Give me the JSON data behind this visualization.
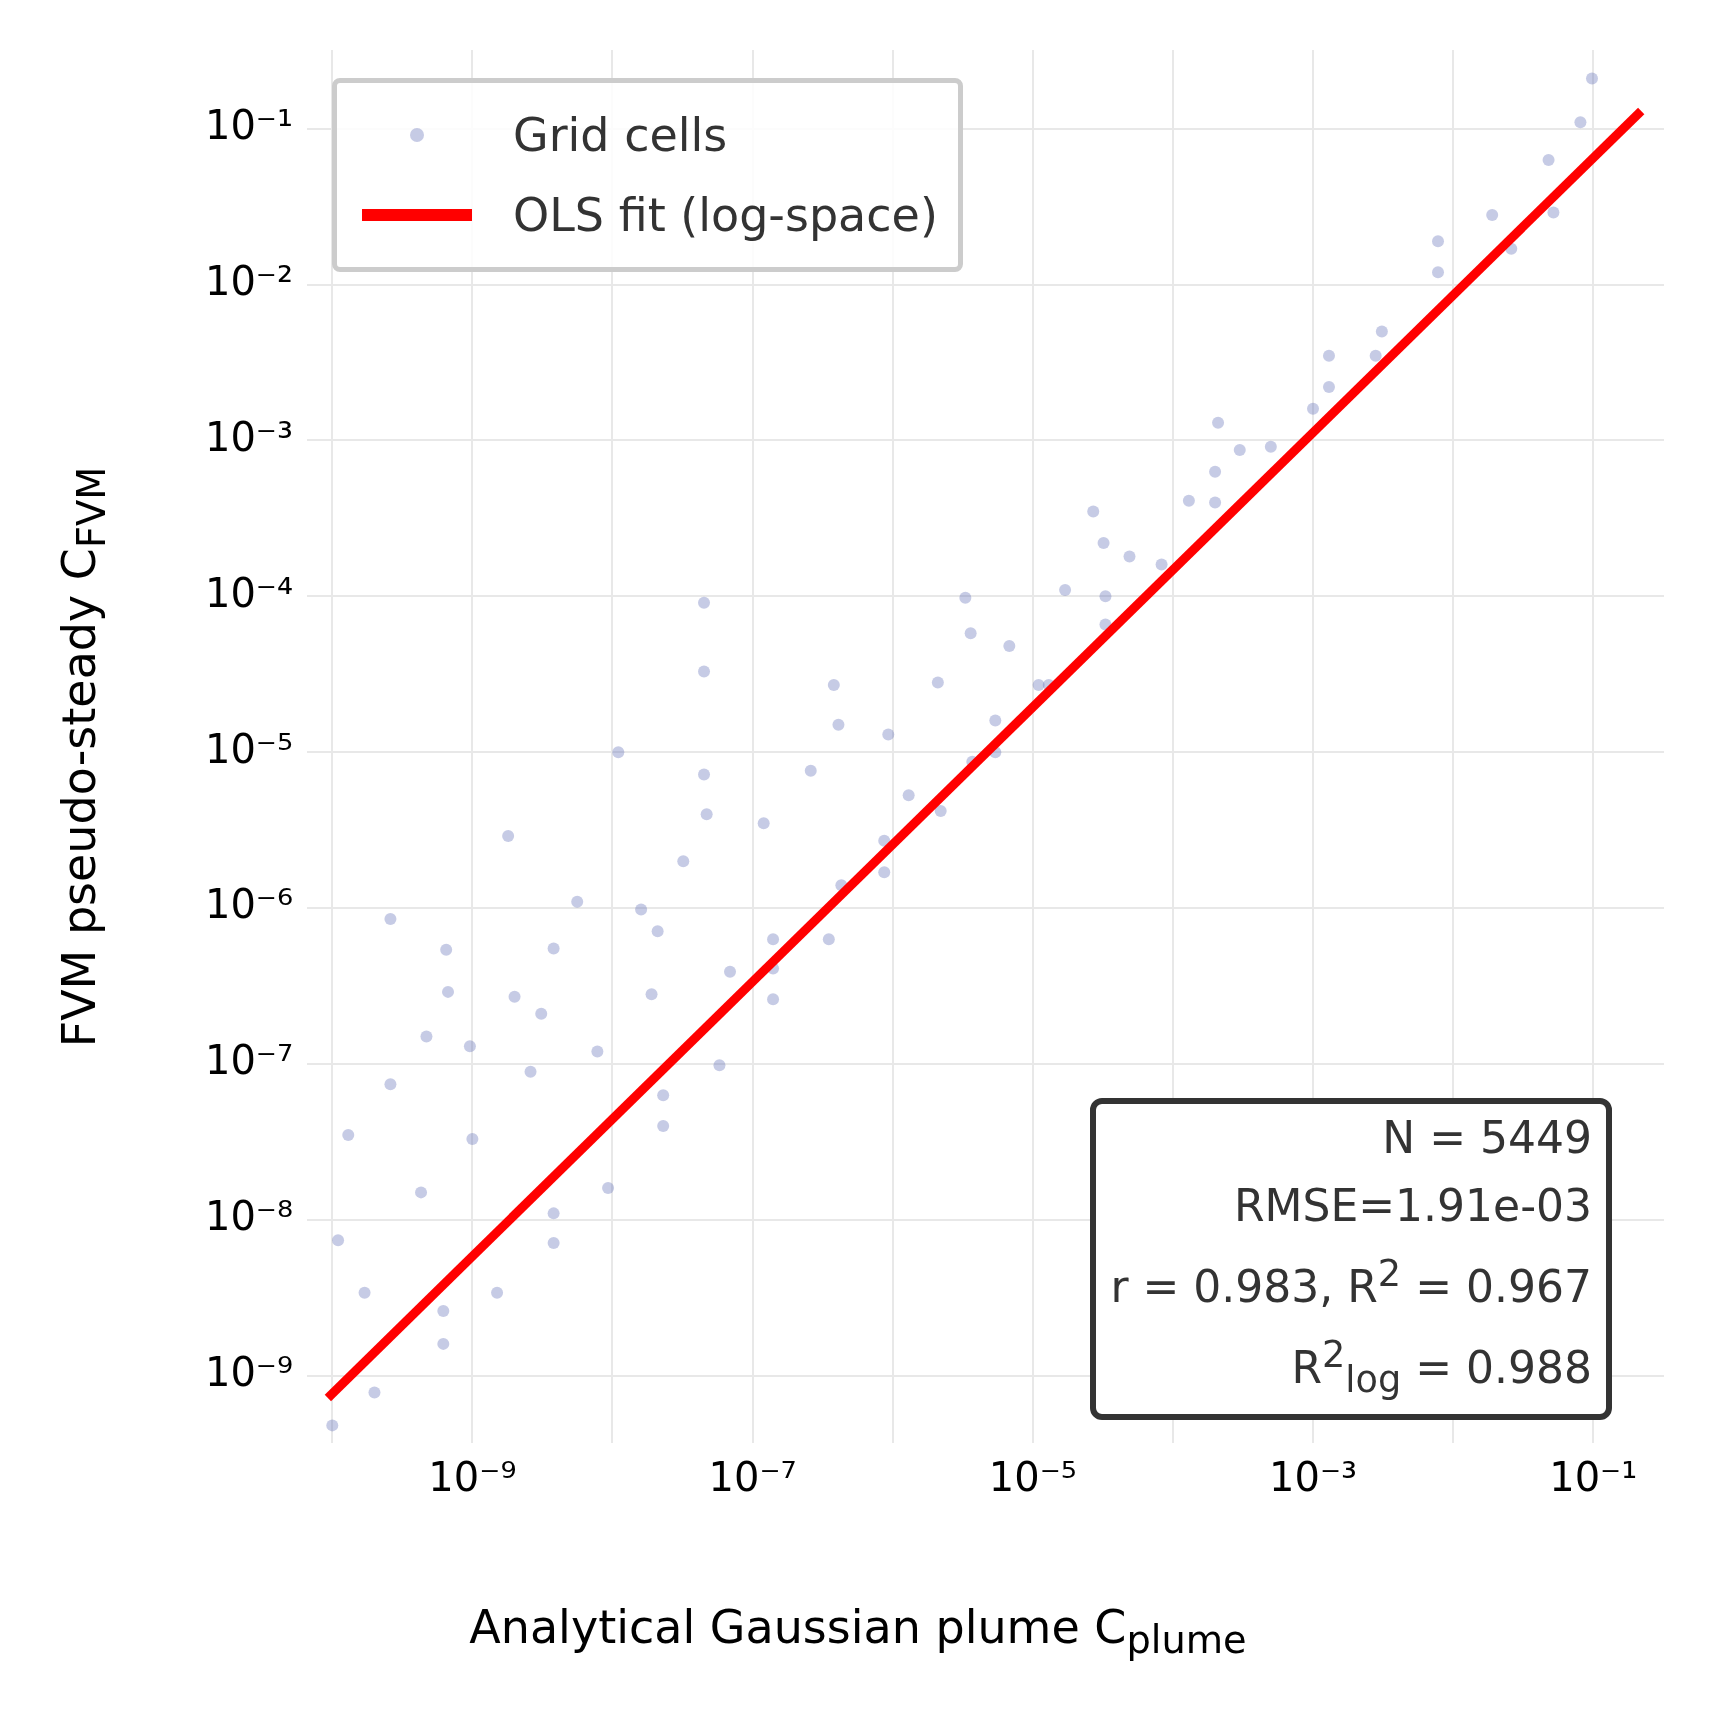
{
  "chart_data": {
    "type": "scatter",
    "xlabel": "Analytical Gaussian plume C$_{plume}$",
    "ylabel": "FVM pseudo-steady C$_{FVM}$",
    "log": "xy",
    "grid": true,
    "legend": "top left",
    "xlim": [
      6.6e-11,
      0.32
    ],
    "ylim": [
      3.7e-10,
      0.32
    ],
    "xticks": [
      {
        "value": 1e-10,
        "label": null
      },
      {
        "value": 1e-09,
        "label": "10⁻⁹"
      },
      {
        "value": 1e-08,
        "label": null
      },
      {
        "value": 1e-07,
        "label": "10⁻⁷"
      },
      {
        "value": 1e-06,
        "label": null
      },
      {
        "value": 1e-05,
        "label": "10⁻⁵"
      },
      {
        "value": 0.0001,
        "label": null
      },
      {
        "value": 0.001,
        "label": "10⁻³"
      },
      {
        "value": 0.01,
        "label": null
      },
      {
        "value": 0.1,
        "label": "10⁻¹"
      }
    ],
    "yticks": [
      {
        "value": 1e-09,
        "label": "10⁻⁹"
      },
      {
        "value": 1e-08,
        "label": "10⁻⁸"
      },
      {
        "value": 1e-07,
        "label": "10⁻⁷"
      },
      {
        "value": 1e-06,
        "label": "10⁻⁶"
      },
      {
        "value": 1e-05,
        "label": "10⁻⁵"
      },
      {
        "value": 0.0001,
        "label": "10⁻⁴"
      },
      {
        "value": 0.001,
        "label": "10⁻³"
      },
      {
        "value": 0.01,
        "label": "10⁻²"
      },
      {
        "value": 0.1,
        "label": "10⁻¹"
      }
    ],
    "series": [
      {
        "name": "Grid cells",
        "color": "#5b6bb5",
        "marker": "circle",
        "x": [
          1e-10,
          2e-10,
          6.2e-10,
          1.5e-09,
          3.8e-09,
          9.3e-09,
          2.3e-08,
          5.8e-08,
          1.4e-07,
          3.5e-07,
          8.7e-07,
          2.2e-06,
          5.4e-06,
          1.3e-05,
          3.3e-05,
          8.3e-05,
          0.0002,
          0.0005,
          0.0013,
          0.0031,
          0.0078,
          0.019,
          0.048,
          0.081,
          6.2e-10,
          3.8e-09,
          2.3e-08,
          1.4e-07,
          8.7e-07,
          5.4e-06,
          3.3e-05,
          0.0002,
          0.0013,
          0.0078,
          1.3e-10,
          2.6e-10,
          2.6e-10,
          1.1e-10,
          6.5e-10,
          6.7e-10,
          4.7e-10,
          9.6e-10,
          1.8e-09,
          2e-09,
          3.1e-09,
          3.8e-09,
          5.6e-09,
          1.1e-08,
          1.6e-08,
          2.1e-08,
          3.2e-08,
          4.5e-08,
          4.5e-08,
          4.5e-08,
          4.7e-08,
          1.2e-07,
          2.6e-07,
          3.8e-07,
          4.1e-07,
          9.3e-07,
          2.1e-06,
          3.3e-06,
          3.6e-06,
          6.8e-06,
          1.7e-05,
          2.7e-05,
          3.2e-05,
          4.9e-05,
          0.00013,
          0.00021,
          0.0003,
          0.001,
          0.0028,
          0.098,
          0.052,
          0.026,
          1.7e-10,
          4.3e-10,
          1e-09,
          2.6e-09,
          7.8e-09,
          1.9e-08,
          6.9e-08,
          1.4e-07,
          4.3e-07,
          1.3e-06,
          3.7e-06,
          1.1e-05
        ],
        "values": [
          4.8e-10,
          7.8e-10,
          1.6e-09,
          3.4e-09,
          7.1e-09,
          1.6e-08,
          4e-08,
          9.8e-08,
          2.6e-07,
          6.3e-07,
          1.7e-06,
          4.2e-06,
          1e-05,
          2.7e-05,
          6.6e-05,
          0.00016,
          0.0004,
          0.00091,
          0.0022,
          0.005,
          0.012,
          0.028,
          0.063,
          0.11,
          2.6e-09,
          1.1e-08,
          6.3e-08,
          4.1e-07,
          2.7e-06,
          1.6e-05,
          0.0001,
          0.00063,
          0.0035,
          0.019,
          3.5e-08,
          8.5e-07,
          7.4e-08,
          7.4e-09,
          5.4e-07,
          2.9e-07,
          1.5e-07,
          1.3e-07,
          2.9e-06,
          2.7e-07,
          2.1e-07,
          5.5e-07,
          1.1e-06,
          1e-05,
          9.8e-07,
          7.1e-07,
          2e-06,
          9.1e-05,
          3.3e-05,
          7.2e-06,
          4e-06,
          3.5e-06,
          7.6e-06,
          2.7e-05,
          1.5e-05,
          1.3e-05,
          2.8e-05,
          9.8e-05,
          5.8e-05,
          4.8e-05,
          0.00011,
          0.00035,
          0.00022,
          0.00018,
          0.00041,
          0.0013,
          0.00087,
          0.0016,
          0.0035,
          0.21,
          0.029,
          0.017,
          3.4e-09,
          1.5e-08,
          3.3e-08,
          8.9e-08,
          1.2e-07,
          2.8e-07,
          3.9e-07,
          6.3e-07,
          1.4e-06,
          5.3e-06,
          8.7e-06,
          2.7e-05
        ]
      },
      {
        "type": "line",
        "name": "OLS fit (log-space)",
        "color": "#ff0000",
        "marker": "none",
        "x": [
          9.3e-11,
          0.22
        ],
        "values": [
          7.2e-10,
          0.13
        ]
      }
    ],
    "annotations": [
      "N = 5449",
      "RMSE=1.91e-03",
      "r = 0.983, R$^{2}$ = 0.967",
      "R$^{2}$$_{log}$ = 0.988"
    ]
  }
}
